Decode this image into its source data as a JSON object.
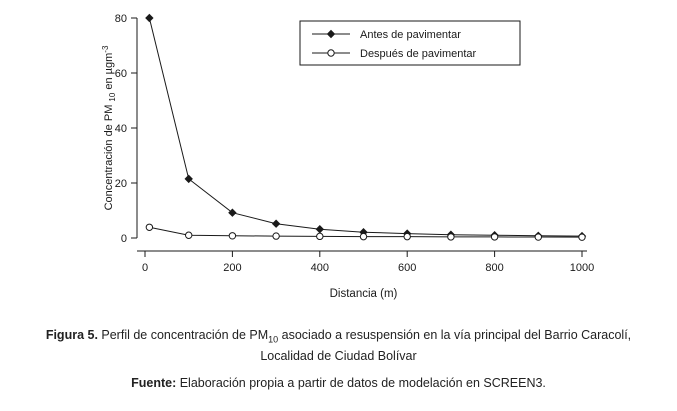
{
  "chart_data": {
    "type": "line",
    "title": "",
    "xlabel": "Distancia (m)",
    "ylabel_parts": {
      "pre": "Concentración de PM ",
      "sub": "10",
      "mid": " en µgm",
      "sup": "-3"
    },
    "xlim": [
      0,
      1000
    ],
    "ylim": [
      0,
      80
    ],
    "xticks": [
      0,
      200,
      400,
      600,
      800,
      1000
    ],
    "yticks": [
      0,
      20,
      40,
      60,
      80
    ],
    "x": [
      10,
      100,
      200,
      300,
      400,
      500,
      600,
      700,
      800,
      900,
      1000
    ],
    "series": [
      {
        "name": "Antes de pavimentar",
        "marker": "diamond-filled",
        "values": [
          80,
          21.5,
          9.2,
          5.2,
          3.2,
          2.1,
          1.6,
          1.2,
          1.0,
          0.8,
          0.7
        ]
      },
      {
        "name": "Después de pavimentar",
        "marker": "circle-open",
        "values": [
          3.9,
          1.0,
          0.8,
          0.7,
          0.6,
          0.5,
          0.5,
          0.4,
          0.4,
          0.35,
          0.3
        ]
      }
    ],
    "legend_position": "top-center",
    "grid": false,
    "line_color": "#1a1a1a",
    "background_color": "#ffffff"
  },
  "caption": {
    "label": "Figura 5.",
    "pre_sub": " Perfil de concentración de PM",
    "sub": "10",
    "post_sub": " asociado a resuspensión en la vía principal del Barrio Caracolí, Localidad de Ciudad Bolívar"
  },
  "source": {
    "label": "Fuente:",
    "text": " Elaboración propia a partir de datos de modelación en SCREEN3."
  }
}
